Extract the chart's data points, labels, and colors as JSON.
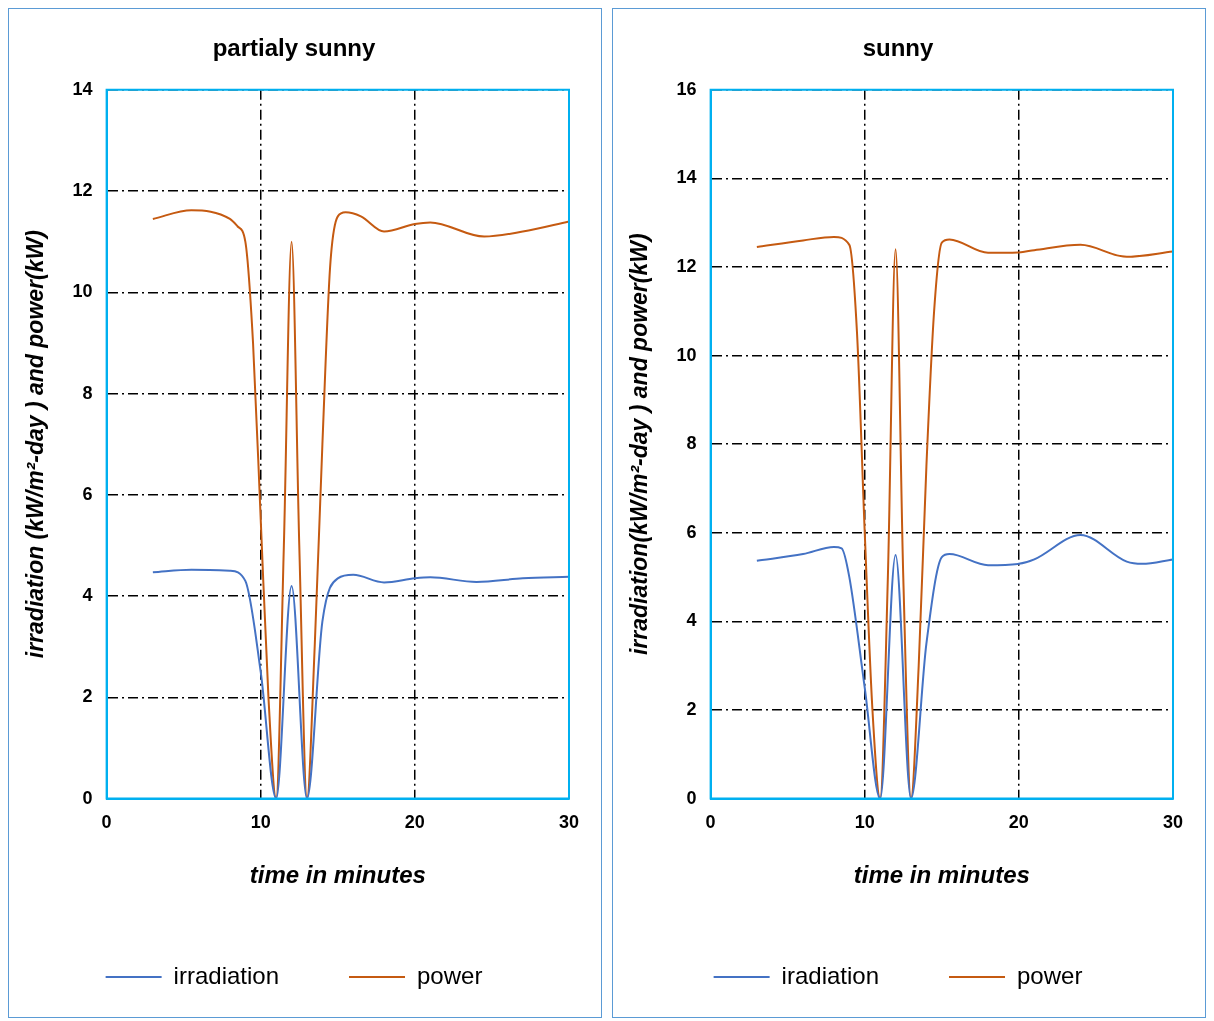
{
  "chart_data": [
    {
      "type": "line",
      "title": "partialy sunny",
      "xlabel": "time in minutes",
      "ylabel": "irradiation (kW/m²-day ) and power(kW)",
      "xlim": [
        0,
        30
      ],
      "xticks": [
        0,
        10,
        20,
        30
      ],
      "ylim": [
        0,
        14
      ],
      "yticks": [
        0,
        2,
        4,
        6,
        8,
        10,
        12,
        14
      ],
      "grid": true,
      "legend": "bottom",
      "marker": "none",
      "line_style": "solid",
      "series": [
        {
          "name": "irradiation",
          "color": "#4472c4",
          "x": [
            3,
            5.5,
            8,
            9,
            10,
            11,
            12,
            13,
            14,
            15,
            16,
            18,
            20,
            21,
            24,
            27,
            30
          ],
          "values": [
            4.47,
            4.52,
            4.5,
            4.3,
            2.5,
            0,
            4.2,
            0,
            3.5,
            4.35,
            4.42,
            4.27,
            4.35,
            4.37,
            4.28,
            4.35,
            4.38
          ]
        },
        {
          "name": "power",
          "color": "#c55a11",
          "x": [
            3,
            5.5,
            8,
            8.5,
            9,
            9.5,
            10,
            10.5,
            11,
            11.5,
            12,
            12.5,
            13,
            13.5,
            14,
            14.5,
            15,
            15.5,
            16.5,
            18,
            20,
            21,
            24.5,
            27,
            30
          ],
          "values": [
            11.45,
            11.62,
            11.45,
            11.3,
            11,
            9,
            5.5,
            2,
            0,
            5,
            11,
            5,
            0,
            3,
            7,
            10.5,
            11.5,
            11.58,
            11.5,
            11.2,
            11.35,
            11.38,
            11.1,
            11.2,
            11.4
          ]
        }
      ]
    },
    {
      "type": "line",
      "title": "sunny",
      "xlabel": "time in minutes",
      "ylabel": "irradiation(kW/m²-day ) and power(kW)",
      "xlim": [
        0,
        30
      ],
      "xticks": [
        0,
        10,
        20,
        30
      ],
      "ylim": [
        0,
        16
      ],
      "yticks": [
        0,
        2,
        4,
        6,
        8,
        10,
        12,
        14,
        16
      ],
      "grid": true,
      "legend": "bottom",
      "marker": "none",
      "line_style": "solid",
      "series": [
        {
          "name": "iradiation",
          "color": "#4472c4",
          "x": [
            3,
            6,
            8,
            8.5,
            9,
            10,
            11,
            12,
            13,
            14,
            15,
            15.5,
            18,
            20,
            21,
            24,
            27,
            28,
            30
          ],
          "values": [
            5.37,
            5.52,
            5.68,
            5.65,
            5,
            2.5,
            0,
            5.5,
            0,
            3.5,
            5.45,
            5.52,
            5.27,
            5.3,
            5.4,
            5.95,
            5.35,
            5.3,
            5.4
          ]
        },
        {
          "name": "power",
          "color": "#c55a11",
          "x": [
            3,
            6,
            8,
            9,
            9.5,
            10,
            10.5,
            11,
            11.5,
            12,
            12.5,
            13,
            13.5,
            14,
            14.5,
            15,
            15.5,
            18,
            20,
            21,
            24,
            27,
            30
          ],
          "values": [
            12.45,
            12.6,
            12.68,
            12.5,
            10.5,
            6,
            2,
            0,
            5,
            12.4,
            5,
            0,
            3,
            7.5,
            11,
            12.55,
            12.62,
            12.32,
            12.33,
            12.38,
            12.5,
            12.23,
            12.35
          ]
        }
      ]
    }
  ]
}
